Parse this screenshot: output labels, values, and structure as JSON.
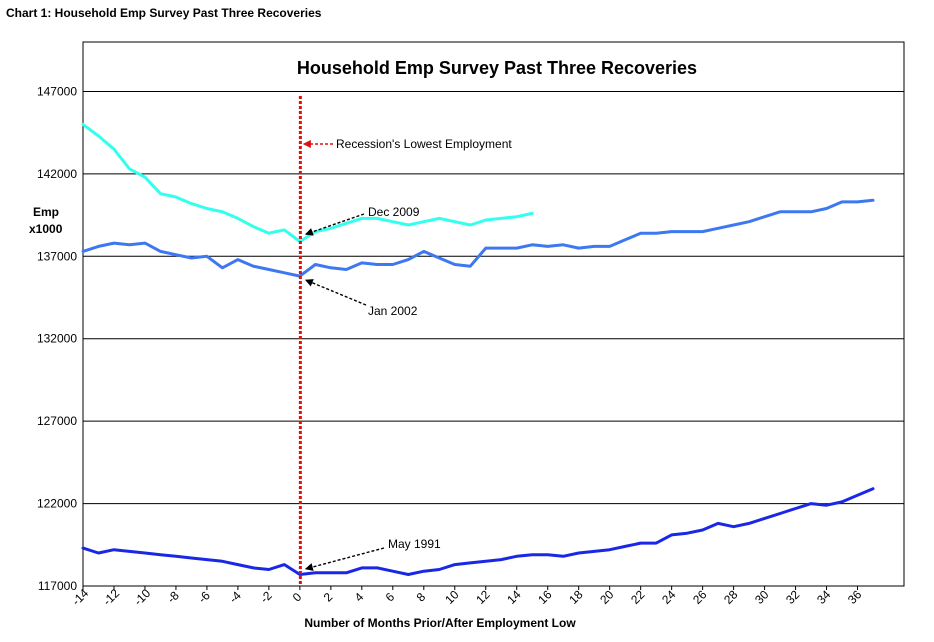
{
  "header": {
    "title": "Chart 1: Household Emp Survey Past Three Recoveries"
  },
  "colors": {
    "dec_2009": "#33ffee",
    "jan_2002": "#3d78f0",
    "may_1991": "#1a28e6",
    "recession_line": "#e01010",
    "arrow_black": "#000000",
    "arrow_red": "#e01010"
  },
  "chart_data": {
    "type": "line",
    "title": "Household Emp Survey Past Three Recoveries",
    "xlabel": "Number of Months Prior/After Employment Low",
    "ylabel": [
      "Emp",
      "x1000"
    ],
    "xlim": [
      -14,
      39
    ],
    "ylim": [
      117000,
      150000
    ],
    "x_ticks": [
      -14,
      -12,
      -10,
      -8,
      -6,
      -4,
      -2,
      0,
      2,
      4,
      6,
      8,
      10,
      12,
      14,
      16,
      18,
      20,
      22,
      24,
      26,
      28,
      30,
      32,
      34,
      36
    ],
    "y_ticks": [
      117000,
      122000,
      127000,
      132000,
      137000,
      142000,
      147000
    ],
    "grid": "horizontal",
    "series": [
      {
        "name": "Dec 2009",
        "color_key": "dec_2009",
        "x": [
          -14,
          -13,
          -12,
          -11,
          -10,
          -9,
          -8,
          -7,
          -6,
          -5,
          -4,
          -3,
          -2,
          -1,
          0,
          1,
          2,
          3,
          4,
          5,
          6,
          7,
          8,
          9,
          10,
          11,
          12,
          13,
          14,
          15
        ],
        "values": [
          145000,
          144300,
          143500,
          142300,
          141800,
          140800,
          140600,
          140200,
          139900,
          139700,
          139300,
          138800,
          138400,
          138600,
          137900,
          138500,
          138700,
          139000,
          139300,
          139300,
          139100,
          138900,
          139100,
          139300,
          139100,
          138900,
          139200,
          139300,
          139400,
          139600
        ]
      },
      {
        "name": "Jan 2002",
        "color_key": "jan_2002",
        "x": [
          -14,
          -13,
          -12,
          -11,
          -10,
          -9,
          -8,
          -7,
          -6,
          -5,
          -4,
          -3,
          -2,
          -1,
          0,
          1,
          2,
          3,
          4,
          5,
          6,
          7,
          8,
          9,
          10,
          11,
          12,
          13,
          14,
          15,
          16,
          17,
          18,
          19,
          20,
          21,
          22,
          23,
          24,
          25,
          26,
          27,
          28,
          29,
          30,
          31,
          32,
          33,
          34,
          35,
          36,
          37
        ],
        "values": [
          137300,
          137600,
          137800,
          137700,
          137800,
          137300,
          137100,
          136900,
          137000,
          136300,
          136800,
          136400,
          136200,
          136000,
          135800,
          136500,
          136300,
          136200,
          136600,
          136500,
          136500,
          136800,
          137300,
          136900,
          136500,
          136400,
          137500,
          137500,
          137500,
          137700,
          137600,
          137700,
          137500,
          137600,
          137600,
          138000,
          138400,
          138400,
          138500,
          138500,
          138500,
          138700,
          138900,
          139100,
          139400,
          139700,
          139700,
          139700,
          139900,
          140300,
          140300,
          140400
        ]
      },
      {
        "name": "May 1991",
        "color_key": "may_1991",
        "x": [
          -14,
          -13,
          -12,
          -11,
          -10,
          -9,
          -8,
          -7,
          -6,
          -5,
          -4,
          -3,
          -2,
          -1,
          0,
          1,
          2,
          3,
          4,
          5,
          6,
          7,
          8,
          9,
          10,
          11,
          12,
          13,
          14,
          15,
          16,
          17,
          18,
          19,
          20,
          21,
          22,
          23,
          24,
          25,
          26,
          27,
          28,
          29,
          30,
          31,
          32,
          33,
          34,
          35,
          36,
          37
        ],
        "values": [
          119300,
          119000,
          119200,
          119100,
          119000,
          118900,
          118800,
          118700,
          118600,
          118500,
          118300,
          118100,
          118000,
          118300,
          117700,
          117800,
          117800,
          117800,
          118100,
          118100,
          117900,
          117700,
          117900,
          118000,
          118300,
          118400,
          118500,
          118600,
          118800,
          118900,
          118900,
          118800,
          119000,
          119100,
          119200,
          119400,
          119600,
          119600,
          120100,
          120200,
          120400,
          120800,
          120600,
          120800,
          121100,
          121400,
          121700,
          122000,
          121900,
          122100,
          122500,
          122900
        ]
      }
    ],
    "annotations": {
      "recession_label": "Recession's Lowest Employment",
      "dec_label": "Dec 2009",
      "jan_label": "Jan 2002",
      "may_label": "May 1991",
      "recession_x": 0
    }
  }
}
